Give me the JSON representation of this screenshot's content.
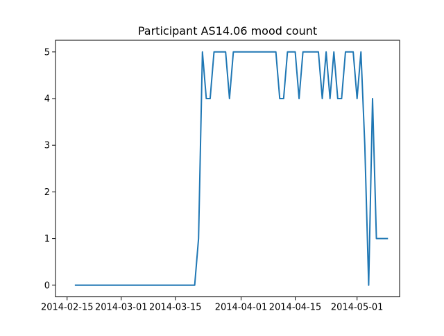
{
  "chart_data": {
    "type": "line",
    "title": "Participant AS14.06 mood count",
    "xlabel": "",
    "ylabel": "",
    "x_ticks": [
      "2014-02-15",
      "2014-03-01",
      "2014-03-15",
      "2014-04-01",
      "2014-04-15",
      "2014-05-01"
    ],
    "y_ticks": [
      "0",
      "1",
      "2",
      "3",
      "4",
      "5"
    ],
    "ylim": [
      -0.25,
      5.25
    ],
    "xlim": [
      "2014-02-12",
      "2014-05-12"
    ],
    "grid": false,
    "line_color": "#1f77b4",
    "series": [
      {
        "x": [
          "2014-02-17",
          "2014-03-20",
          "2014-03-21",
          "2014-03-22",
          "2014-03-23",
          "2014-03-24",
          "2014-03-25",
          "2014-03-26",
          "2014-03-27",
          "2014-03-28",
          "2014-03-29",
          "2014-03-30",
          "2014-03-31",
          "2014-04-01",
          "2014-04-02",
          "2014-04-03",
          "2014-04-04",
          "2014-04-05",
          "2014-04-06",
          "2014-04-07",
          "2014-04-08",
          "2014-04-09",
          "2014-04-10",
          "2014-04-11",
          "2014-04-12",
          "2014-04-13",
          "2014-04-14",
          "2014-04-15",
          "2014-04-16",
          "2014-04-17",
          "2014-04-18",
          "2014-04-19",
          "2014-04-20",
          "2014-04-21",
          "2014-04-22",
          "2014-04-23",
          "2014-04-24",
          "2014-04-25",
          "2014-04-26",
          "2014-04-27",
          "2014-04-28",
          "2014-04-29",
          "2014-04-30",
          "2014-05-01",
          "2014-05-02",
          "2014-05-03",
          "2014-05-04",
          "2014-05-05",
          "2014-05-06",
          "2014-05-07",
          "2014-05-08",
          "2014-05-09"
        ],
        "values": [
          0,
          0,
          1,
          5,
          4,
          4,
          5,
          5,
          5,
          5,
          4,
          5,
          5,
          5,
          5,
          5,
          5,
          5,
          5,
          5,
          5,
          5,
          5,
          4,
          4,
          5,
          5,
          5,
          4,
          5,
          5,
          5,
          5,
          5,
          4,
          5,
          4,
          5,
          4,
          4,
          5,
          5,
          5,
          4,
          5,
          3,
          0,
          4,
          1,
          1,
          1,
          1
        ]
      }
    ]
  }
}
